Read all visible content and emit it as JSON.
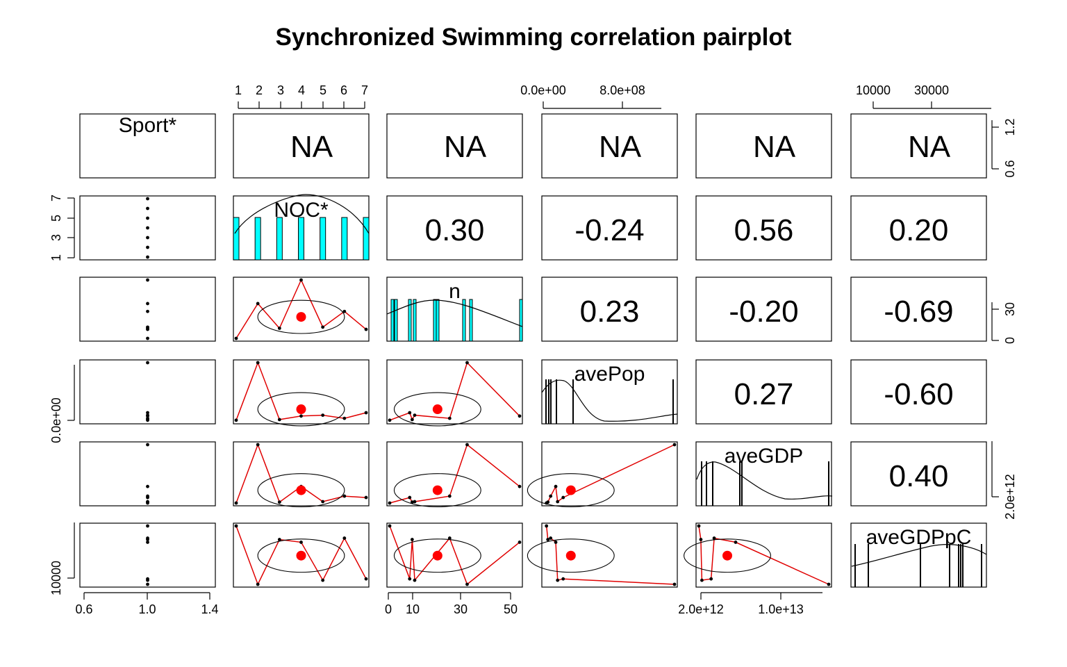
{
  "chart_data": {
    "type": "scatter",
    "title": "Synchronized Swimming correlation pairplot",
    "variables": [
      "Sport*",
      "NOC*",
      "n",
      "avePop",
      "aveGDP",
      "aveGDPpC"
    ],
    "na_label": "NA",
    "correlations": [
      {
        "row": 1,
        "col": 2,
        "label": "0.30"
      },
      {
        "row": 1,
        "col": 3,
        "label": "-0.24"
      },
      {
        "row": 1,
        "col": 4,
        "label": "0.56"
      },
      {
        "row": 1,
        "col": 5,
        "label": "0.20"
      },
      {
        "row": 2,
        "col": 3,
        "label": "0.23"
      },
      {
        "row": 2,
        "col": 4,
        "label": "-0.20"
      },
      {
        "row": 2,
        "col": 5,
        "label": "-0.69"
      },
      {
        "row": 3,
        "col": 4,
        "label": "0.27"
      },
      {
        "row": 3,
        "col": 5,
        "label": "-0.60"
      },
      {
        "row": 4,
        "col": 5,
        "label": "0.40"
      }
    ],
    "axes": {
      "top": [
        {
          "col": 1,
          "ticks": [
            "1",
            "2",
            "3",
            "4",
            "5",
            "6",
            "7"
          ]
        },
        {
          "col": 3,
          "ticks": [
            "0.0e+00",
            "8.0e+08"
          ]
        },
        {
          "col": 5,
          "ticks": [
            "10000",
            "30000"
          ]
        }
      ],
      "bottom": [
        {
          "col": 0,
          "ticks": [
            "0.6",
            "1.0",
            "1.4"
          ]
        },
        {
          "col": 2,
          "ticks": [
            "0",
            "10",
            "30",
            "50"
          ]
        },
        {
          "col": 4,
          "ticks": [
            "2.0e+12",
            "1.0e+13"
          ]
        }
      ],
      "left": [
        {
          "row": 1,
          "ticks": [
            "1",
            "3",
            "5",
            "7"
          ]
        },
        {
          "row": 3,
          "ticks": [
            "0.0e+00"
          ]
        },
        {
          "row": 5,
          "ticks": [
            "10000"
          ]
        }
      ],
      "right": [
        {
          "row": 0,
          "ticks": [
            "0.6",
            "1.2"
          ]
        },
        {
          "row": 2,
          "ticks": [
            "0",
            "30"
          ]
        },
        {
          "row": 4,
          "ticks": [
            "2.0e+12"
          ]
        }
      ]
    },
    "observations": {
      "Sport": [
        1,
        1,
        1,
        1,
        1,
        1,
        1
      ],
      "NOC": [
        1,
        2,
        3,
        4,
        5,
        6,
        7
      ],
      "n": [
        2,
        33,
        11,
        54,
        12,
        26,
        10
      ],
      "avePop": [
        20000000.0,
        1400000000.0,
        35000000.0,
        120000000.0,
        140000000.0,
        65000000.0,
        200000000.0
      ],
      "aveGDP": [
        1300000000000.0,
        14000000000000.0,
        1500000000000.0,
        4900000000000.0,
        1600000000000.0,
        2800000000000.0,
        2500000000000.0
      ],
      "aveGDPpC": [
        51000,
        8000,
        41000,
        39000,
        11000,
        42000,
        12000
      ]
    },
    "colors": {
      "points": "#000000",
      "smoother": "#e00000",
      "mean": "#ff0000",
      "histogram": "#00ffff"
    }
  }
}
